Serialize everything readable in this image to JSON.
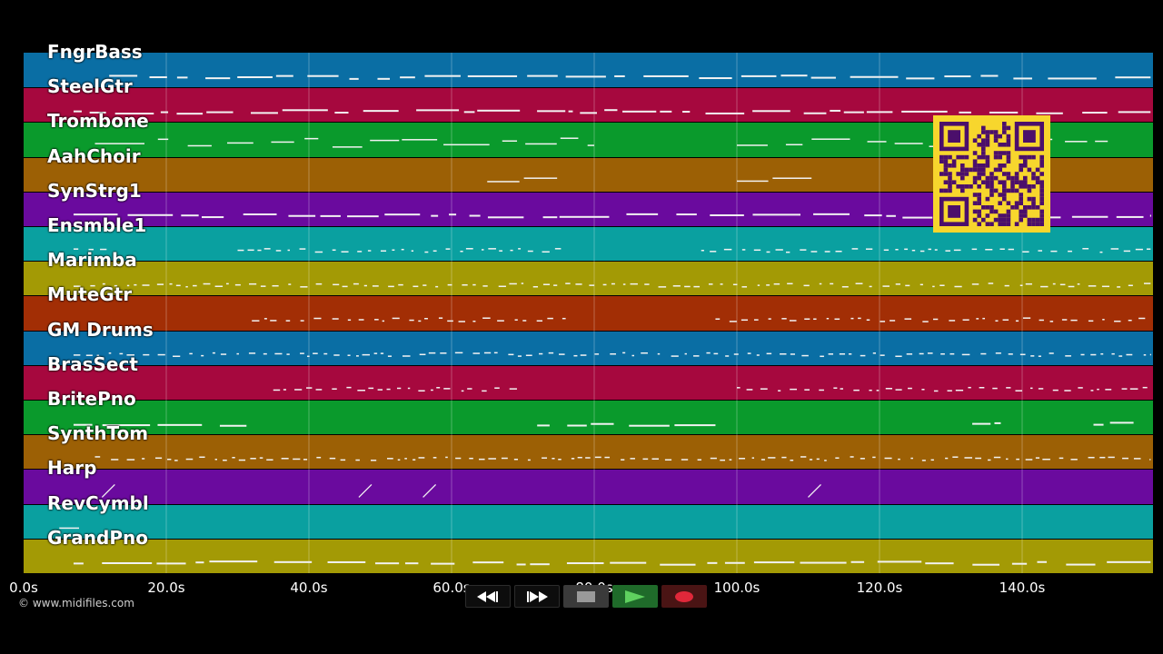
{
  "tracks": [
    {
      "name": "FngrBass",
      "color": "#0a6ea4"
    },
    {
      "name": "SteelGtr",
      "color": "#a6083e"
    },
    {
      "name": "Trombone",
      "color": "#0a9a2c"
    },
    {
      "name": "AahChoir",
      "color": "#9c6005"
    },
    {
      "name": "SynStrg1",
      "color": "#6a0a9e"
    },
    {
      "name": "Ensmble1",
      "color": "#0aa0a0"
    },
    {
      "name": "Marimba",
      "color": "#a39a05"
    },
    {
      "name": "MuteGtr",
      "color": "#a22e05"
    },
    {
      "name": "GM Drums",
      "color": "#0a6ea4"
    },
    {
      "name": "BrasSect",
      "color": "#a6083e"
    },
    {
      "name": "BritePno",
      "color": "#0a9a2c"
    },
    {
      "name": "SynthTom",
      "color": "#9c6005"
    },
    {
      "name": "Harp",
      "color": "#6a0a9e"
    },
    {
      "name": "RevCymbl",
      "color": "#0aa0a0"
    },
    {
      "name": "GrandPno",
      "color": "#a39a05"
    }
  ],
  "timeline": {
    "ticks": [
      "0.0s",
      "20.0s",
      "40.0s",
      "60.0s",
      "80.0s",
      "100.0s",
      "120.0s",
      "140.0s"
    ],
    "tick_values": [
      0,
      20,
      40,
      60,
      80,
      100,
      120,
      140
    ],
    "max_seconds": 159
  },
  "copyright": "© www.midifiles.com",
  "colors": {
    "qr_background": "#f7d62d",
    "qr_foreground": "#4b0f6b",
    "play_icon": "#5fd15f",
    "record_icon": "#e0283a"
  },
  "transport": {
    "rewind_icon": "rewind-icon",
    "fast_forward_icon": "fast-forward-icon",
    "stop_icon": "stop-icon",
    "play_icon": "play-icon",
    "record_icon": "record-icon"
  }
}
